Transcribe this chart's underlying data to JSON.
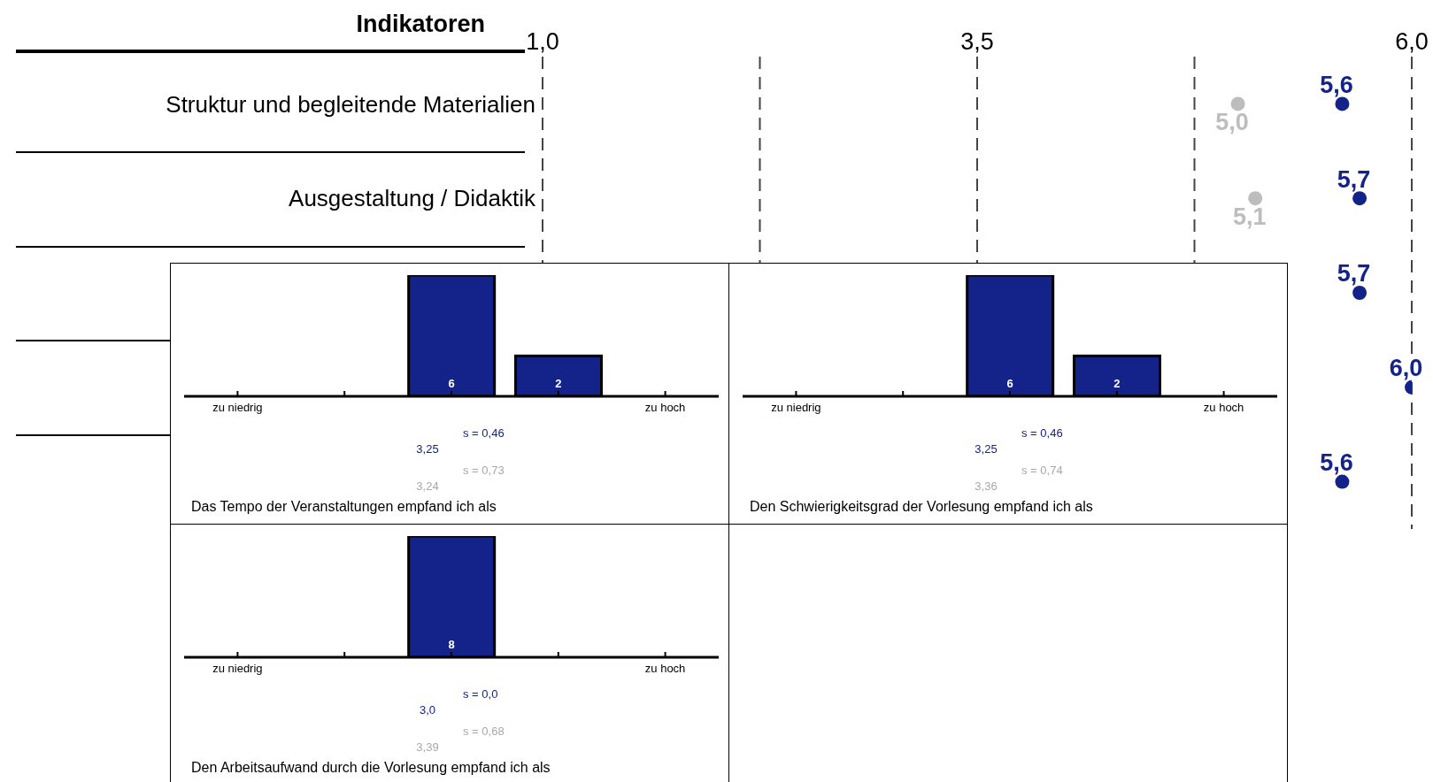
{
  "chart_data": [
    {
      "type": "scatter",
      "orientation": "horizontal",
      "ylabel": "Indikatoren",
      "categories": [
        "Struktur und begleitende Materialien",
        "Ausgestaltung / Didaktik",
        null,
        null,
        null
      ],
      "series": [
        {
          "color": "#bdbdbd",
          "values": [
            5.0,
            5.1,
            null,
            null,
            null
          ],
          "value_labels": [
            "5,0",
            "5,1",
            null,
            null,
            null
          ]
        },
        {
          "color": "#14238a",
          "values": [
            5.6,
            5.7,
            5.7,
            6.0,
            5.6
          ],
          "value_labels": [
            "5,6",
            "5,7",
            "5,7",
            "6,0",
            "5,6"
          ]
        }
      ],
      "xlim": [
        1,
        6
      ],
      "xticks": [
        {
          "value": 1,
          "label": "1,0"
        },
        {
          "value": 2.25,
          "label": null
        },
        {
          "value": 3.5,
          "label": "3,5"
        },
        {
          "value": 4.75,
          "label": null
        },
        {
          "value": 6,
          "label": "6,0"
        }
      ],
      "grid": "x",
      "marker": "circle",
      "legend": false
    },
    {
      "type": "bar",
      "title": "Das Tempo der Veranstaltungen empfand ich als",
      "categories": [
        "zu niedrig",
        null,
        null,
        null,
        "zu hoch"
      ],
      "ylim": [
        0,
        6
      ],
      "tick_labels": "x",
      "series": [
        {
          "color": "#14238a",
          "values": [
            0,
            0,
            6,
            2,
            0
          ],
          "value_labels": [
            null,
            null,
            "6",
            "2",
            null
          ]
        }
      ],
      "annotations": [
        "3,25",
        "s = 0,46",
        "3,24",
        "s = 0,73"
      ],
      "legend": false
    },
    {
      "type": "bar",
      "title": "Den Schwierigkeitsgrad der Vorlesung empfand ich als",
      "categories": [
        "zu niedrig",
        null,
        null,
        null,
        "zu hoch"
      ],
      "ylim": [
        0,
        6
      ],
      "tick_labels": "x",
      "series": [
        {
          "color": "#14238a",
          "values": [
            0,
            0,
            6,
            2,
            0
          ],
          "value_labels": [
            null,
            null,
            "6",
            "2",
            null
          ]
        }
      ],
      "annotations": [
        "3,25",
        "s = 0,46",
        "3,36",
        "s = 0,74"
      ],
      "legend": false
    },
    {
      "type": "bar",
      "title": "Den Arbeitsaufwand durch die Vorlesung empfand ich als",
      "categories": [
        "zu niedrig",
        null,
        null,
        null,
        "zu hoch"
      ],
      "ylim": [
        0,
        8
      ],
      "tick_labels": "x",
      "series": [
        {
          "color": "#14238a",
          "values": [
            0,
            0,
            8,
            0,
            0
          ],
          "value_labels": [
            null,
            null,
            "8",
            null,
            null
          ]
        }
      ],
      "annotations": [
        "3,0",
        "s = 0,0",
        "3,39",
        "s = 0,68"
      ],
      "legend": false
    }
  ]
}
